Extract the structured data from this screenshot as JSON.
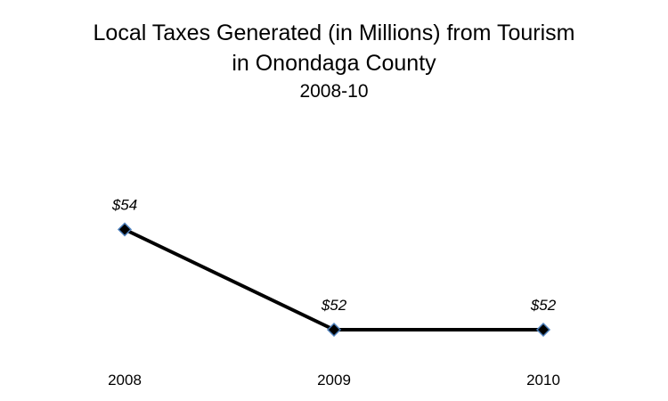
{
  "chart_data": {
    "type": "line",
    "title": "Local Taxes Generated (in Millions) from Tourism",
    "title_line2": "in Onondaga County",
    "subtitle": "2008-10",
    "categories": [
      "2008",
      "2009",
      "2010"
    ],
    "series": [
      {
        "values": [
          54,
          52,
          52
        ],
        "data_labels": [
          "$54",
          "$52",
          "$52"
        ],
        "line_color": "#000000",
        "marker": "diamond",
        "marker_color": "#000000",
        "marker_edge_color": "#4f81bd"
      }
    ],
    "xlabel": "",
    "ylabel": "",
    "ylim": [
      50,
      56
    ],
    "grid": false,
    "legend": "none"
  }
}
